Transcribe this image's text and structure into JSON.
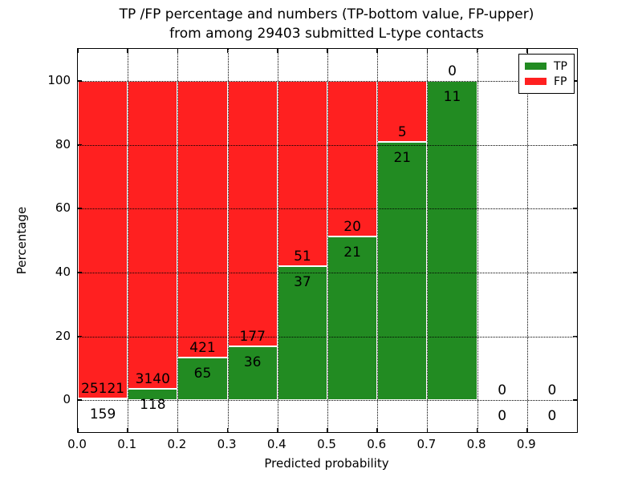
{
  "chart_data": {
    "type": "bar",
    "stacked": true,
    "title_line1": "TP /FP percentage and numbers (TP-bottom value, FP-upper)",
    "title_line2": "from among 29403 submitted L-type contacts",
    "total_submitted_contacts": 29403,
    "xlabel": "Predicted probability",
    "ylabel": "Percentage",
    "xlim": [
      0.0,
      1.0
    ],
    "ylim": [
      -10,
      110
    ],
    "grid": true,
    "yticks": [
      0,
      20,
      40,
      60,
      80,
      100
    ],
    "xtick_labels": [
      "0.0",
      "0.1",
      "0.2",
      "0.3",
      "0.4",
      "0.5",
      "0.6",
      "0.7",
      "0.8",
      "0.9"
    ],
    "bin_width": 0.1,
    "legend": [
      {
        "label": "TP",
        "color": "#228b22"
      },
      {
        "label": "FP",
        "color": "#ff2020"
      }
    ],
    "legend_position": "upper right",
    "bins": [
      {
        "x_start": 0.0,
        "tp": 159,
        "fp": 25121
      },
      {
        "x_start": 0.1,
        "tp": 118,
        "fp": 3140
      },
      {
        "x_start": 0.2,
        "tp": 65,
        "fp": 421
      },
      {
        "x_start": 0.3,
        "tp": 36,
        "fp": 177
      },
      {
        "x_start": 0.4,
        "tp": 37,
        "fp": 51
      },
      {
        "x_start": 0.5,
        "tp": 21,
        "fp": 20
      },
      {
        "x_start": 0.6,
        "tp": 21,
        "fp": 5
      },
      {
        "x_start": 0.7,
        "tp": 11,
        "fp": 0
      },
      {
        "x_start": 0.8,
        "tp": 0,
        "fp": 0
      },
      {
        "x_start": 0.9,
        "tp": 0,
        "fp": 0
      }
    ]
  }
}
